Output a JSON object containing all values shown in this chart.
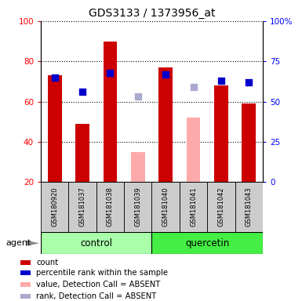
{
  "title": "GDS3133 / 1373956_at",
  "samples": [
    "GSM180920",
    "GSM181037",
    "GSM181038",
    "GSM181039",
    "GSM181040",
    "GSM181041",
    "GSM181042",
    "GSM181043"
  ],
  "count_values": [
    73,
    49,
    90,
    null,
    77,
    null,
    68,
    59
  ],
  "rank_values": [
    65,
    56,
    68,
    null,
    67,
    null,
    63,
    62
  ],
  "absent_value": [
    null,
    null,
    null,
    35,
    null,
    52,
    null,
    null
  ],
  "absent_rank": [
    null,
    null,
    null,
    53,
    null,
    59,
    null,
    null
  ],
  "ylim_left": [
    20,
    100
  ],
  "ylim_right": [
    0,
    100
  ],
  "left_ticks": [
    20,
    40,
    60,
    80,
    100
  ],
  "right_ticks": [
    0,
    25,
    50,
    75,
    100
  ],
  "right_tick_labels": [
    "0",
    "25",
    "50",
    "75",
    "100%"
  ],
  "bar_color_red": "#cc0000",
  "bar_color_pink": "#ffaaaa",
  "dot_color_blue": "#0000cc",
  "dot_color_lightblue": "#aaaacc",
  "group_control_color": "#aaffaa",
  "group_quercetin_color": "#44ee44",
  "sample_bg_color": "#cccccc",
  "legend_items": [
    {
      "color": "#cc0000",
      "label": "count"
    },
    {
      "color": "#0000cc",
      "label": "percentile rank within the sample"
    },
    {
      "color": "#ffaaaa",
      "label": "value, Detection Call = ABSENT"
    },
    {
      "color": "#aaaacc",
      "label": "rank, Detection Call = ABSENT"
    }
  ],
  "agent_label": "agent",
  "bar_width": 0.5,
  "dot_size": 40,
  "group_label_control": "control",
  "group_label_quercetin": "quercetin",
  "n_control": 4,
  "n_quercetin": 4
}
